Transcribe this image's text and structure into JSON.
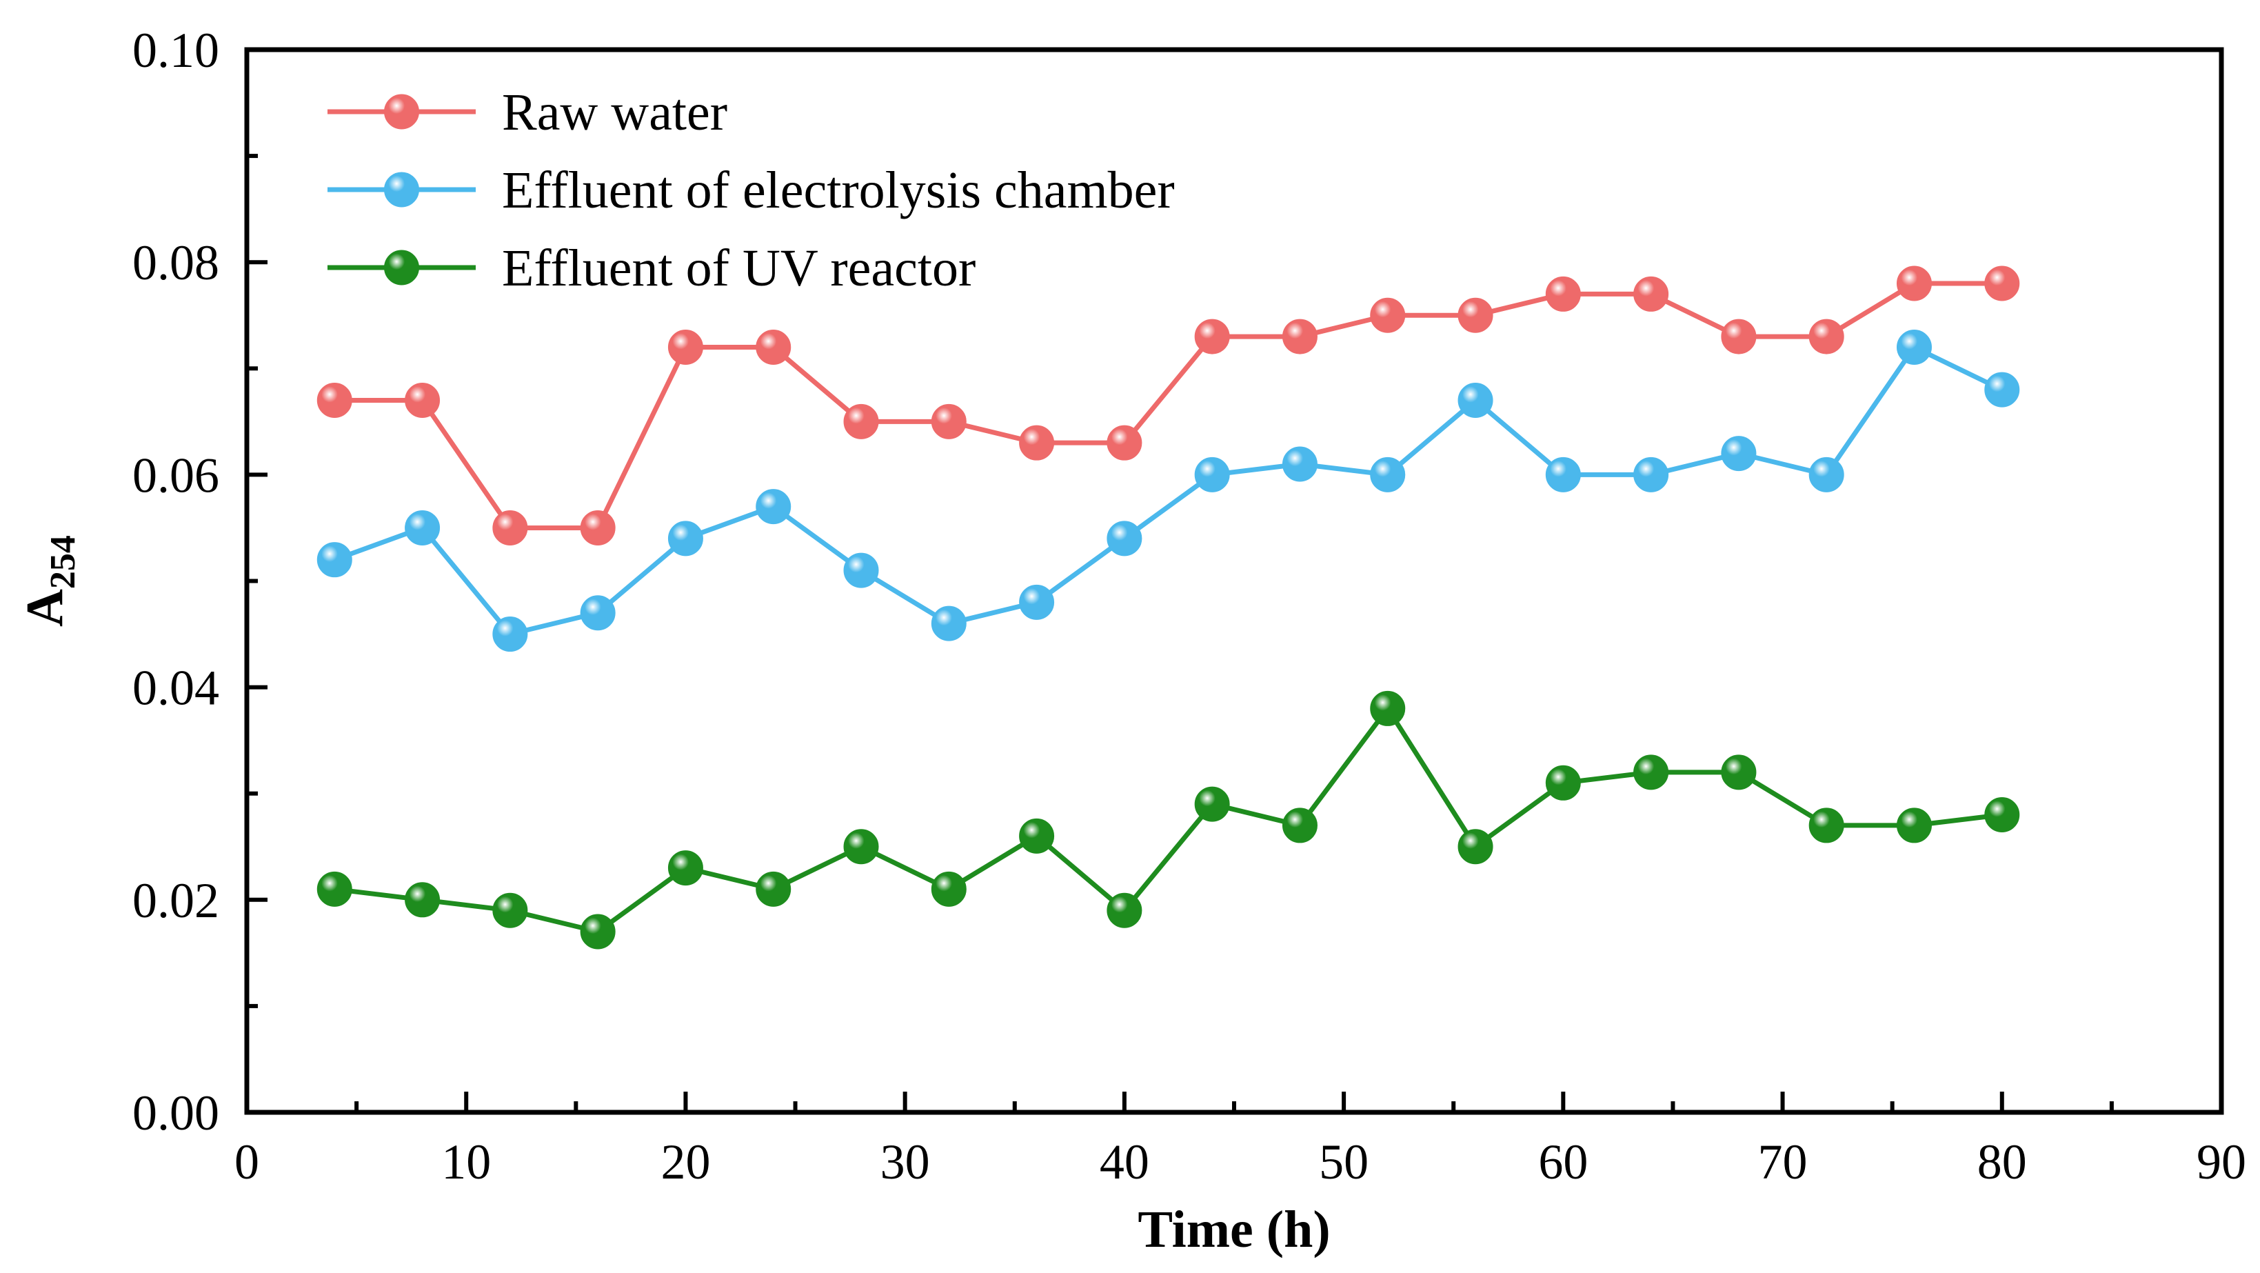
{
  "chart_data": {
    "type": "line",
    "title": "",
    "xlabel": "Time (h)",
    "ylabel_main": "A",
    "ylabel_sub": "254",
    "xlim": [
      0,
      90
    ],
    "ylim": [
      0.0,
      0.1
    ],
    "x_ticks": [
      "0",
      "10",
      "20",
      "30",
      "40",
      "50",
      "60",
      "70",
      "80",
      "90"
    ],
    "y_ticks": [
      "0.00",
      "0.02",
      "0.04",
      "0.06",
      "0.08",
      "0.10"
    ],
    "legend_position": "top-left",
    "grid": false,
    "x": [
      4,
      8,
      12,
      16,
      20,
      24,
      28,
      32,
      36,
      40,
      44,
      48,
      52,
      56,
      60,
      64,
      68,
      72,
      76,
      80
    ],
    "series": [
      {
        "name": "Raw water",
        "color": "#EE6A6A",
        "values": [
          0.067,
          0.067,
          0.055,
          0.055,
          0.072,
          0.072,
          0.065,
          0.065,
          0.063,
          0.063,
          0.073,
          0.073,
          0.075,
          0.075,
          0.077,
          0.077,
          0.073,
          0.073,
          0.078,
          0.078
        ]
      },
      {
        "name": "Effluent of electrolysis chamber",
        "color": "#4BB8EC",
        "values": [
          0.052,
          0.055,
          0.045,
          0.047,
          0.054,
          0.057,
          0.051,
          0.046,
          0.048,
          0.054,
          0.06,
          0.061,
          0.06,
          0.067,
          0.06,
          0.06,
          0.062,
          0.06,
          0.072,
          0.068
        ]
      },
      {
        "name": "Effluent of UV reactor",
        "color": "#1E8C1E",
        "values": [
          0.021,
          0.02,
          0.019,
          0.017,
          0.023,
          0.021,
          0.025,
          0.021,
          0.026,
          0.019,
          0.029,
          0.027,
          0.038,
          0.025,
          0.031,
          0.032,
          0.032,
          0.027,
          0.027,
          0.028
        ]
      }
    ]
  }
}
